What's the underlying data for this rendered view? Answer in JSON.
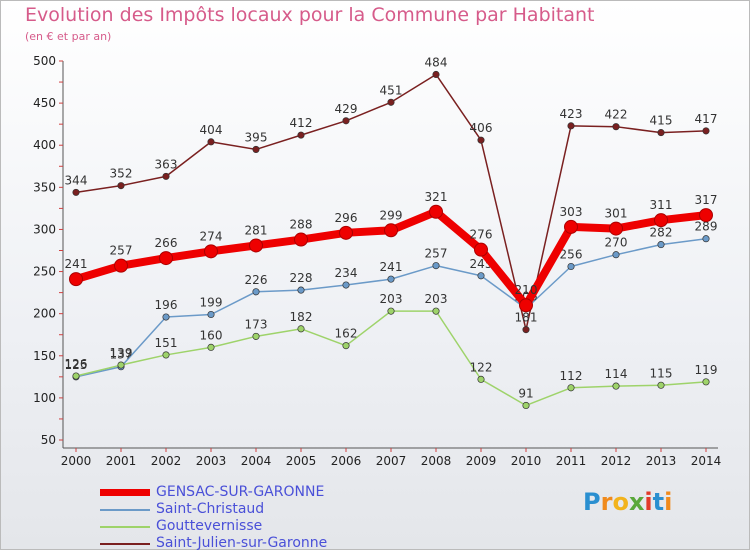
{
  "title": "Evolution des Impôts locaux pour la Commune par Habitant",
  "subtitle": "(en € et par an)",
  "brand": {
    "letters": [
      "P",
      "r",
      "o",
      "x",
      "i",
      "t",
      "i"
    ],
    "colors": [
      "#2a8fd0",
      "#f08a1c",
      "#f2b31c",
      "#5aa83a",
      "#e23a2a",
      "#2a8fd0",
      "#f08a1c"
    ]
  },
  "chart_data": {
    "type": "line",
    "x": [
      "2000",
      "2001",
      "2002",
      "2003",
      "2004",
      "2005",
      "2006",
      "2007",
      "2008",
      "2009",
      "2010",
      "2011",
      "2012",
      "2013",
      "2014"
    ],
    "yticks": [
      "50",
      "100",
      "150",
      "200",
      "250",
      "300",
      "350",
      "400",
      "450",
      "500"
    ],
    "ylim": [
      50,
      500
    ],
    "grid": false,
    "legend_position": "bottom-left",
    "series": [
      {
        "name": "Saint-Julien-sur-Garonne",
        "color": "#7a2020",
        "style": "thin",
        "values": [
          344,
          352,
          363,
          404,
          395,
          412,
          429,
          451,
          484,
          406,
          181,
          423,
          422,
          415,
          417
        ],
        "labels": [
          "344",
          "352",
          "363",
          "404",
          "395",
          "412",
          "429",
          "451",
          "484",
          "406",
          "181",
          "423",
          "422",
          "415",
          "417"
        ]
      },
      {
        "name": "Saint-Christaud",
        "color": "#6b9ac8",
        "style": "thin",
        "values": [
          125,
          137,
          196,
          199,
          226,
          228,
          234,
          241,
          257,
          245,
          206,
          256,
          270,
          282,
          289
        ],
        "labels": [
          "125",
          "137",
          "196",
          "199",
          "226",
          "228",
          "234",
          "241",
          "257",
          "245",
          "206",
          "256",
          "270",
          "282",
          "289"
        ]
      },
      {
        "name": "Gouttevernisse",
        "color": "#9ed36a",
        "style": "thin",
        "values": [
          126,
          139,
          151,
          160,
          173,
          182,
          162,
          203,
          203,
          122,
          91,
          112,
          114,
          115,
          119
        ],
        "labels": [
          "126",
          "139",
          "151",
          "160",
          "173",
          "182",
          "162",
          "203",
          "203",
          "122",
          "91",
          "112",
          "114",
          "115",
          "119"
        ]
      },
      {
        "name": "GENSAC-SUR-GARONNE",
        "color": "#ee0000",
        "style": "thick",
        "values": [
          241,
          257,
          266,
          274,
          281,
          288,
          296,
          299,
          321,
          276,
          210,
          303,
          301,
          311,
          317
        ],
        "labels": [
          "241",
          "257",
          "266",
          "274",
          "281",
          "288",
          "296",
          "299",
          "321",
          "276",
          "210",
          "303",
          "301",
          "311",
          "317"
        ]
      }
    ],
    "legend": [
      "GENSAC-SUR-GARONNE",
      "Saint-Christaud",
      "Gouttevernisse",
      "Saint-Julien-sur-Garonne"
    ]
  }
}
